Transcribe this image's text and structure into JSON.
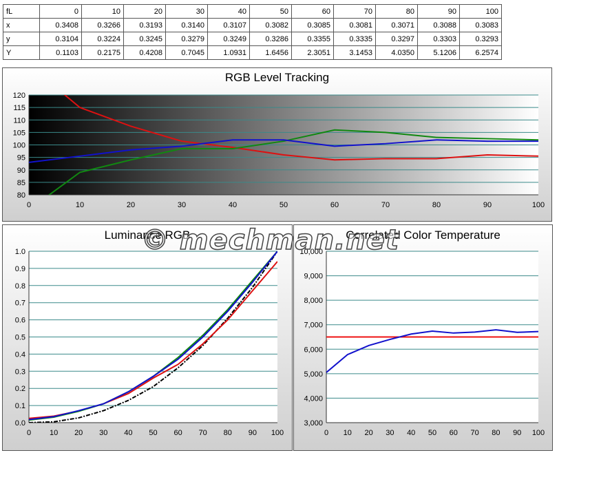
{
  "table": {
    "header": [
      "fL",
      "0",
      "10",
      "20",
      "30",
      "40",
      "50",
      "60",
      "70",
      "80",
      "90",
      "100"
    ],
    "rows": [
      {
        "label": "x",
        "values": [
          "0.3408",
          "0.3266",
          "0.3193",
          "0.3140",
          "0.3107",
          "0.3082",
          "0.3085",
          "0.3081",
          "0.3071",
          "0.3088",
          "0.3083"
        ]
      },
      {
        "label": "y",
        "values": [
          "0.3104",
          "0.3224",
          "0.3245",
          "0.3279",
          "0.3249",
          "0.3286",
          "0.3355",
          "0.3335",
          "0.3297",
          "0.3303",
          "0.3293"
        ]
      },
      {
        "label": "Y",
        "values": [
          "0.1103",
          "0.2175",
          "0.4208",
          "0.7045",
          "1.0931",
          "1.6456",
          "2.3051",
          "3.1453",
          "4.0350",
          "5.1206",
          "6.2574"
        ]
      }
    ]
  },
  "watermark": "© mechman.net",
  "chart_data": [
    {
      "id": "rgb",
      "type": "line",
      "title": "RGB Level Tracking",
      "x": [
        0,
        10,
        20,
        30,
        40,
        50,
        60,
        70,
        80,
        90,
        100
      ],
      "ylim": [
        80,
        120
      ],
      "yticks": [
        80,
        85,
        90,
        95,
        100,
        105,
        110,
        115,
        120
      ],
      "xticks": [
        0,
        10,
        20,
        30,
        40,
        50,
        60,
        70,
        80,
        90,
        100
      ],
      "grid": true,
      "series": [
        {
          "color": "#dd1111",
          "values": [
            132,
            115,
            107.5,
            101.5,
            99,
            96,
            94,
            94.5,
            94.5,
            96,
            95.5
          ]
        },
        {
          "color": "#118811",
          "values": [
            74,
            89,
            94,
            98.5,
            98.5,
            101.5,
            106,
            105,
            103,
            102.5,
            102
          ]
        },
        {
          "color": "#1111cc",
          "values": [
            93,
            95.5,
            98,
            99.5,
            102,
            102,
            99.5,
            100.5,
            102,
            101.5,
            101.5
          ]
        }
      ]
    },
    {
      "id": "lum",
      "type": "line",
      "title": "Luminance RGB",
      "x": [
        0,
        10,
        20,
        30,
        40,
        50,
        60,
        70,
        80,
        90,
        100
      ],
      "ylim": [
        0,
        1
      ],
      "yticks": [
        "0.0",
        "0.1",
        "0.2",
        "0.3",
        "0.4",
        "0.5",
        "0.6",
        "0.7",
        "0.8",
        "0.9",
        "1.0"
      ],
      "xticks": [
        0,
        10,
        20,
        30,
        40,
        50,
        60,
        70,
        80,
        90,
        100
      ],
      "grid": true,
      "series": [
        {
          "color": "#000000",
          "dash": "6,2,2,2",
          "values": [
            0,
            0.005,
            0.028,
            0.07,
            0.13,
            0.21,
            0.32,
            0.45,
            0.61,
            0.79,
            1.0
          ]
        },
        {
          "color": "#dd1111",
          "values": [
            0.025,
            0.038,
            0.068,
            0.11,
            0.17,
            0.26,
            0.34,
            0.46,
            0.6,
            0.77,
            0.94
          ]
        },
        {
          "color": "#118811",
          "values": [
            0.015,
            0.032,
            0.066,
            0.11,
            0.18,
            0.27,
            0.38,
            0.51,
            0.66,
            0.83,
            1.0
          ]
        },
        {
          "color": "#1111cc",
          "values": [
            0.018,
            0.035,
            0.07,
            0.11,
            0.18,
            0.27,
            0.37,
            0.5,
            0.65,
            0.82,
            1.0
          ]
        }
      ]
    },
    {
      "id": "cct",
      "type": "line",
      "title": "Correlated Color Temperature",
      "x": [
        0,
        10,
        20,
        30,
        40,
        50,
        60,
        70,
        80,
        90,
        100
      ],
      "ylim": [
        3000,
        10000
      ],
      "yticks": [
        "3,000",
        "4,000",
        "5,000",
        "6,000",
        "7,000",
        "8,000",
        "9,000",
        "10,000"
      ],
      "xticks": [
        0,
        10,
        20,
        30,
        40,
        50,
        60,
        70,
        80,
        90,
        100
      ],
      "grid": true,
      "series": [
        {
          "color": "#ee1111",
          "values": [
            6500,
            6500,
            6500,
            6500,
            6500,
            6500,
            6500,
            6500,
            6500,
            6500,
            6500
          ]
        },
        {
          "color": "#1111cc",
          "values": [
            5050,
            5780,
            6150,
            6400,
            6620,
            6740,
            6660,
            6700,
            6790,
            6690,
            6720
          ]
        }
      ]
    }
  ]
}
